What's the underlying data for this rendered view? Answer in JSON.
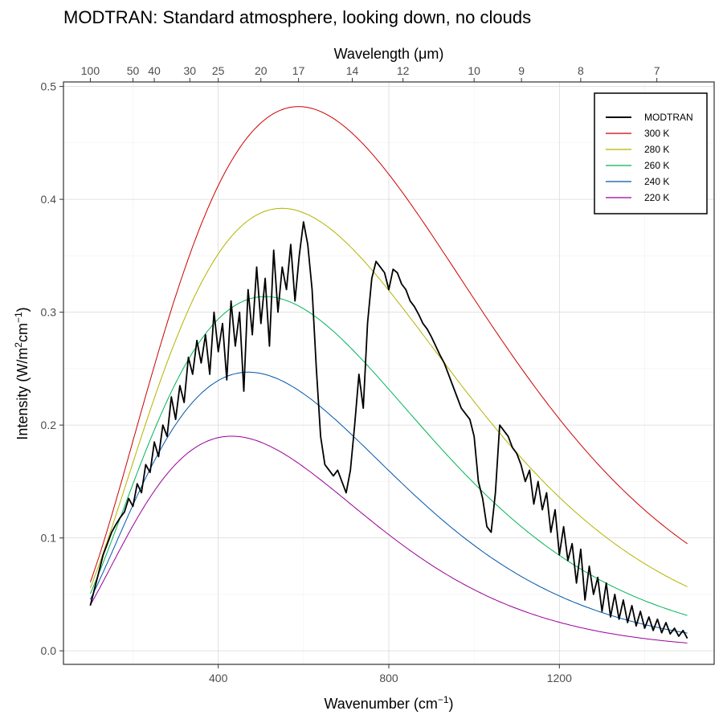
{
  "chart_data": {
    "type": "line",
    "title": "MODTRAN: Standard atmosphere, looking down, no clouds",
    "xlabel_main": "Wavenumber (cm",
    "xlabel_sup": "−1",
    "xlabel_close": ")",
    "ylabel_main": "Intensity (W/m",
    "ylabel_sup1": "2",
    "ylabel_mid": "cm",
    "ylabel_sup2": "−1",
    "ylabel_close": ")",
    "top_axis_label_prefix": "Wavelength (",
    "top_axis_label_unit": "μm",
    "top_axis_label_close": ")",
    "xlim": [
      100,
      1500
    ],
    "ylim": [
      0,
      0.5
    ],
    "x_ticks": [
      400,
      800,
      1200
    ],
    "x_tick_labels": [
      "400",
      "800",
      "1200"
    ],
    "y_ticks": [
      0.0,
      0.1,
      0.2,
      0.3,
      0.4,
      0.5
    ],
    "y_tick_labels": [
      "0.0",
      "0.1",
      "0.2",
      "0.3",
      "0.4",
      "0.5"
    ],
    "top_ticks_um": [
      100,
      50,
      40,
      30,
      25,
      20,
      17,
      14,
      12,
      10,
      9,
      8,
      7
    ],
    "top_tick_labels": [
      "100",
      "50",
      "40",
      "30",
      "25",
      "20",
      "17",
      "14",
      "12",
      "10",
      "9",
      "8",
      "7"
    ],
    "grid": true,
    "legend_position": "top-right",
    "legend": [
      {
        "label": "MODTRAN",
        "color": "#000000"
      },
      {
        "label": "300 K",
        "color": "#cc0000"
      },
      {
        "label": "280 K",
        "color": "#b3b300"
      },
      {
        "label": "260 K",
        "color": "#00b359"
      },
      {
        "label": "240 K",
        "color": "#0055aa"
      },
      {
        "label": "220 K",
        "color": "#990099"
      }
    ],
    "blackbody_temps": [
      300,
      280,
      260,
      240,
      220
    ],
    "modtran": {
      "x": [
        100,
        110,
        120,
        130,
        140,
        150,
        160,
        170,
        180,
        190,
        200,
        210,
        220,
        230,
        240,
        250,
        260,
        270,
        280,
        290,
        300,
        310,
        320,
        330,
        340,
        350,
        360,
        370,
        380,
        390,
        400,
        410,
        420,
        430,
        440,
        450,
        460,
        470,
        480,
        490,
        500,
        510,
        520,
        530,
        540,
        550,
        560,
        570,
        580,
        590,
        600,
        610,
        620,
        630,
        640,
        650,
        660,
        670,
        680,
        690,
        700,
        710,
        720,
        730,
        740,
        750,
        760,
        770,
        780,
        790,
        800,
        810,
        820,
        830,
        840,
        850,
        860,
        870,
        880,
        890,
        900,
        910,
        920,
        930,
        940,
        950,
        960,
        970,
        980,
        990,
        1000,
        1010,
        1020,
        1030,
        1040,
        1050,
        1060,
        1070,
        1080,
        1090,
        1100,
        1110,
        1120,
        1130,
        1140,
        1150,
        1160,
        1170,
        1180,
        1190,
        1200,
        1210,
        1220,
        1230,
        1240,
        1250,
        1260,
        1270,
        1280,
        1290,
        1300,
        1310,
        1320,
        1330,
        1340,
        1350,
        1360,
        1370,
        1380,
        1390,
        1400,
        1410,
        1420,
        1430,
        1440,
        1450,
        1460,
        1470,
        1480,
        1490,
        1500
      ],
      "y": [
        0.04,
        0.055,
        0.07,
        0.085,
        0.095,
        0.105,
        0.112,
        0.118,
        0.123,
        0.135,
        0.128,
        0.148,
        0.14,
        0.165,
        0.158,
        0.185,
        0.172,
        0.2,
        0.19,
        0.225,
        0.205,
        0.235,
        0.22,
        0.26,
        0.245,
        0.275,
        0.255,
        0.28,
        0.245,
        0.3,
        0.265,
        0.29,
        0.24,
        0.31,
        0.27,
        0.3,
        0.23,
        0.32,
        0.28,
        0.34,
        0.29,
        0.33,
        0.27,
        0.355,
        0.3,
        0.34,
        0.32,
        0.36,
        0.31,
        0.35,
        0.38,
        0.36,
        0.32,
        0.25,
        0.19,
        0.165,
        0.16,
        0.155,
        0.16,
        0.15,
        0.14,
        0.16,
        0.2,
        0.245,
        0.215,
        0.29,
        0.33,
        0.345,
        0.34,
        0.335,
        0.32,
        0.338,
        0.335,
        0.325,
        0.32,
        0.31,
        0.305,
        0.298,
        0.29,
        0.285,
        0.278,
        0.27,
        0.262,
        0.255,
        0.245,
        0.235,
        0.225,
        0.215,
        0.21,
        0.205,
        0.19,
        0.15,
        0.135,
        0.11,
        0.105,
        0.14,
        0.2,
        0.195,
        0.19,
        0.18,
        0.175,
        0.165,
        0.15,
        0.16,
        0.13,
        0.15,
        0.125,
        0.14,
        0.105,
        0.125,
        0.085,
        0.11,
        0.08,
        0.095,
        0.06,
        0.09,
        0.045,
        0.075,
        0.05,
        0.065,
        0.035,
        0.06,
        0.03,
        0.05,
        0.028,
        0.045,
        0.025,
        0.04,
        0.022,
        0.035,
        0.02,
        0.03,
        0.018,
        0.028,
        0.016,
        0.025,
        0.015,
        0.02,
        0.013,
        0.018,
        0.011
      ]
    }
  }
}
